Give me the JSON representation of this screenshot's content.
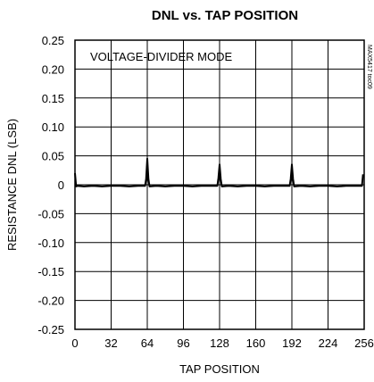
{
  "chart_data": {
    "type": "line",
    "title": "DNL vs. TAP POSITION",
    "xlabel": "TAP POSITION",
    "ylabel": "RESISTANCE DNL (LSB)",
    "annotation": "VOLTAGE-DIVIDER MODE",
    "figure_id": "MAX5417 toc09",
    "xlim": [
      0,
      256
    ],
    "ylim": [
      -0.25,
      0.25
    ],
    "x_ticks": [
      "0",
      "32",
      "64",
      "96",
      "128",
      "160",
      "192",
      "224",
      "256"
    ],
    "y_ticks": [
      "0.25",
      "0.20",
      "0.15",
      "0.10",
      "0.05",
      "0",
      "-0.05",
      "-0.10",
      "-0.15",
      "-0.20",
      "-0.25"
    ],
    "grid": true,
    "series": [
      {
        "color": "#000000",
        "x": [
          0,
          1,
          2,
          8,
          16,
          24,
          32,
          40,
          48,
          56,
          62,
          63,
          64,
          65,
          66,
          72,
          80,
          88,
          96,
          104,
          112,
          120,
          126,
          127,
          128,
          129,
          130,
          136,
          144,
          152,
          160,
          168,
          176,
          184,
          190,
          191,
          192,
          193,
          194,
          200,
          208,
          216,
          224,
          232,
          240,
          248,
          254,
          255
        ],
        "y": [
          0.02,
          -0.003,
          -0.002,
          -0.003,
          -0.002,
          -0.003,
          -0.002,
          -0.002,
          -0.003,
          -0.002,
          -0.002,
          0.01,
          0.045,
          0.01,
          -0.003,
          -0.002,
          -0.003,
          -0.002,
          -0.002,
          -0.003,
          -0.002,
          -0.002,
          -0.002,
          0.012,
          0.035,
          0.01,
          -0.003,
          -0.002,
          -0.003,
          -0.002,
          -0.002,
          -0.003,
          -0.002,
          -0.002,
          -0.002,
          0.01,
          0.035,
          0.01,
          -0.003,
          -0.002,
          -0.003,
          -0.002,
          -0.002,
          -0.003,
          -0.002,
          -0.002,
          -0.002,
          0.018
        ]
      }
    ]
  }
}
